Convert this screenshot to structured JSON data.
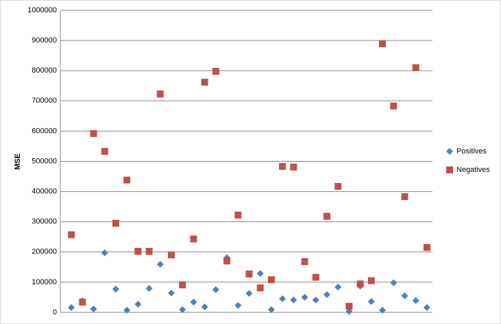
{
  "chart_data": {
    "type": "scatter",
    "y_label": "MSE",
    "categories": [
      null,
      null,
      null,
      null,
      null,
      null,
      null,
      null,
      null,
      null,
      null,
      null,
      null,
      null,
      null,
      null,
      null,
      null,
      null,
      null,
      null,
      null,
      null,
      null,
      null,
      null,
      null,
      null,
      null,
      null,
      null,
      null,
      null
    ],
    "series": [
      {
        "name": "Positives",
        "color": "#4f81bd",
        "marker": "diamond",
        "values": [
          16000,
          38000,
          11000,
          197000,
          77000,
          7000,
          27000,
          79000,
          159000,
          64000,
          9000,
          34000,
          18000,
          75000,
          181000,
          23000,
          63000,
          129000,
          9000,
          45000,
          41000,
          50000,
          41000,
          59000,
          84000,
          3000,
          87000,
          36000,
          7000,
          98000,
          55000,
          39000,
          16000
        ]
      },
      {
        "name": "Negatives",
        "color": "#c0504d",
        "marker": "square",
        "values": [
          257000,
          34000,
          592000,
          533000,
          295000,
          438000,
          202000,
          202000,
          723000,
          190000,
          91000,
          243000,
          762000,
          798000,
          170000,
          322000,
          127000,
          81000,
          108000,
          483000,
          481000,
          168000,
          116000,
          318000,
          417000,
          20000,
          94000,
          105000,
          889000,
          683000,
          383000,
          810000,
          215000
        ]
      }
    ],
    "ylim": [
      0,
      1000000
    ],
    "yticks": [
      0,
      100000,
      200000,
      300000,
      400000,
      500000,
      600000,
      700000,
      800000,
      900000,
      1000000
    ],
    "grid": true,
    "legend": "right"
  }
}
